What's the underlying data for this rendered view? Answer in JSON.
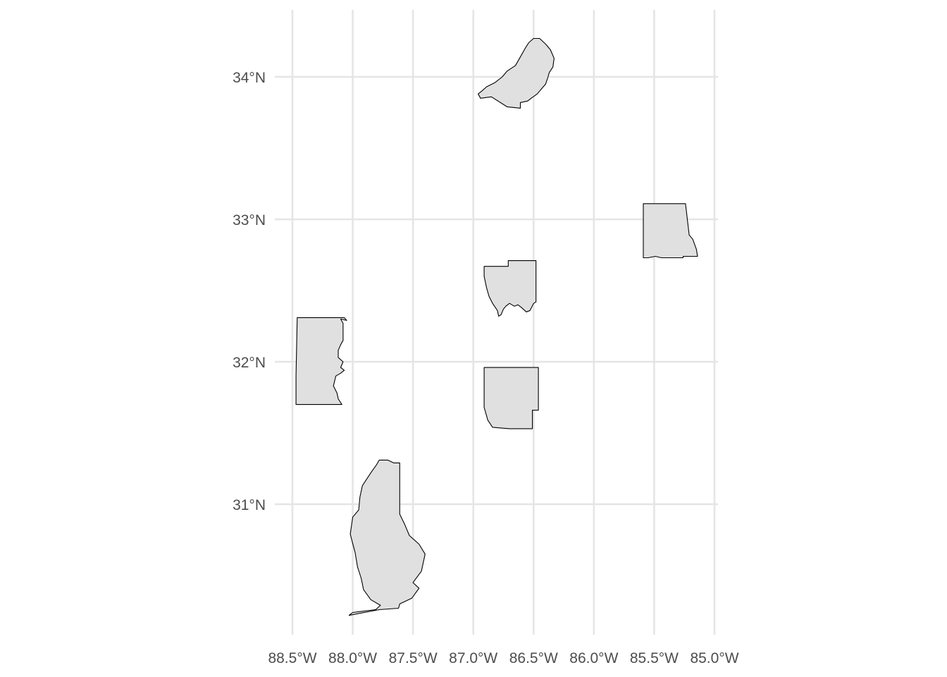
{
  "map": {
    "type": "choropleth-outline",
    "fill_color": "#e0e0e0",
    "stroke_color": "#000000",
    "grid_color": "#e5e5e5",
    "background": "#ffffff",
    "lon_range": [
      -88.5,
      -85.0
    ],
    "lat_range": [
      30.22,
      34.27
    ],
    "x_ticks": [
      {
        "value": -88.5,
        "label": "88.5°W"
      },
      {
        "value": -88.0,
        "label": "88.0°W"
      },
      {
        "value": -87.5,
        "label": "87.5°W"
      },
      {
        "value": -87.0,
        "label": "87.0°W"
      },
      {
        "value": -86.5,
        "label": "86.5°W"
      },
      {
        "value": -86.0,
        "label": "86.0°W"
      },
      {
        "value": -85.5,
        "label": "85.5°W"
      },
      {
        "value": -85.0,
        "label": "85.0°W"
      }
    ],
    "y_ticks": [
      {
        "value": 31,
        "label": "31°N"
      },
      {
        "value": 32,
        "label": "32°N"
      },
      {
        "value": 33,
        "label": "33°N"
      },
      {
        "value": 34,
        "label": "34°N"
      }
    ],
    "regions": [
      {
        "id": "region-north",
        "coords": [
          [
            -86.96,
            33.88
          ],
          [
            -86.94,
            33.85
          ],
          [
            -86.85,
            33.86
          ],
          [
            -86.72,
            33.79
          ],
          [
            -86.61,
            33.78
          ],
          [
            -86.61,
            33.82
          ],
          [
            -86.55,
            33.83
          ],
          [
            -86.52,
            33.85
          ],
          [
            -86.47,
            33.88
          ],
          [
            -86.4,
            33.95
          ],
          [
            -86.38,
            34.0
          ],
          [
            -86.37,
            34.03
          ],
          [
            -86.34,
            34.07
          ],
          [
            -86.33,
            34.13
          ],
          [
            -86.36,
            34.19
          ],
          [
            -86.4,
            34.23
          ],
          [
            -86.45,
            34.27
          ],
          [
            -86.5,
            34.27
          ],
          [
            -86.54,
            34.24
          ],
          [
            -86.57,
            34.2
          ],
          [
            -86.61,
            34.14
          ],
          [
            -86.65,
            34.08
          ],
          [
            -86.72,
            34.04
          ],
          [
            -86.76,
            34.0
          ],
          [
            -86.82,
            33.96
          ],
          [
            -86.89,
            33.93
          ],
          [
            -86.93,
            33.9
          ],
          [
            -86.96,
            33.88
          ]
        ]
      },
      {
        "id": "region-east",
        "coords": [
          [
            -85.59,
            32.73
          ],
          [
            -85.59,
            33.11
          ],
          [
            -85.24,
            33.11
          ],
          [
            -85.21,
            32.89
          ],
          [
            -85.18,
            32.86
          ],
          [
            -85.15,
            32.79
          ],
          [
            -85.14,
            32.74
          ],
          [
            -85.26,
            32.74
          ],
          [
            -85.26,
            32.73
          ],
          [
            -85.44,
            32.73
          ],
          [
            -85.49,
            32.74
          ],
          [
            -85.55,
            32.73
          ],
          [
            -85.59,
            32.73
          ]
        ]
      },
      {
        "id": "region-center",
        "coords": [
          [
            -86.91,
            32.67
          ],
          [
            -86.71,
            32.67
          ],
          [
            -86.71,
            32.71
          ],
          [
            -86.48,
            32.71
          ],
          [
            -86.48,
            32.42
          ],
          [
            -86.5,
            32.41
          ],
          [
            -86.53,
            32.36
          ],
          [
            -86.56,
            32.35
          ],
          [
            -86.6,
            32.38
          ],
          [
            -86.63,
            32.4
          ],
          [
            -86.66,
            32.39
          ],
          [
            -86.68,
            32.4
          ],
          [
            -86.7,
            32.41
          ],
          [
            -86.73,
            32.39
          ],
          [
            -86.75,
            32.37
          ],
          [
            -86.77,
            32.33
          ],
          [
            -86.79,
            32.32
          ],
          [
            -86.8,
            32.36
          ],
          [
            -86.84,
            32.41
          ],
          [
            -86.87,
            32.46
          ],
          [
            -86.89,
            32.52
          ],
          [
            -86.91,
            32.6
          ],
          [
            -86.91,
            32.67
          ]
        ]
      },
      {
        "id": "region-south-center",
        "coords": [
          [
            -86.91,
            31.96
          ],
          [
            -86.46,
            31.96
          ],
          [
            -86.46,
            31.66
          ],
          [
            -86.51,
            31.66
          ],
          [
            -86.51,
            31.53
          ],
          [
            -86.7,
            31.53
          ],
          [
            -86.84,
            31.54
          ],
          [
            -86.88,
            31.59
          ],
          [
            -86.91,
            31.68
          ],
          [
            -86.91,
            31.96
          ]
        ]
      },
      {
        "id": "region-west",
        "coords": [
          [
            -88.46,
            32.31
          ],
          [
            -88.21,
            32.31
          ],
          [
            -88.07,
            32.31
          ],
          [
            -88.05,
            32.29
          ],
          [
            -88.1,
            32.3
          ],
          [
            -88.08,
            32.27
          ],
          [
            -88.08,
            32.15
          ],
          [
            -88.1,
            32.12
          ],
          [
            -88.12,
            32.08
          ],
          [
            -88.12,
            32.03
          ],
          [
            -88.08,
            32.0
          ],
          [
            -88.1,
            31.96
          ],
          [
            -88.07,
            31.94
          ],
          [
            -88.1,
            31.92
          ],
          [
            -88.14,
            31.9
          ],
          [
            -88.16,
            31.83
          ],
          [
            -88.13,
            31.78
          ],
          [
            -88.12,
            31.74
          ],
          [
            -88.09,
            31.7
          ],
          [
            -88.47,
            31.7
          ],
          [
            -88.47,
            31.9
          ],
          [
            -88.46,
            32.31
          ]
        ]
      },
      {
        "id": "region-southwest",
        "coords": [
          [
            -88.03,
            30.22
          ],
          [
            -87.78,
            30.26
          ],
          [
            -87.62,
            30.27
          ],
          [
            -87.61,
            30.3
          ],
          [
            -87.51,
            30.34
          ],
          [
            -87.45,
            30.41
          ],
          [
            -87.5,
            30.45
          ],
          [
            -87.43,
            30.53
          ],
          [
            -87.4,
            30.65
          ],
          [
            -87.45,
            30.72
          ],
          [
            -87.53,
            30.78
          ],
          [
            -87.57,
            30.86
          ],
          [
            -87.61,
            30.93
          ],
          [
            -87.61,
            31.29
          ],
          [
            -87.66,
            31.29
          ],
          [
            -87.71,
            31.31
          ],
          [
            -87.78,
            31.31
          ],
          [
            -87.8,
            31.28
          ],
          [
            -87.85,
            31.22
          ],
          [
            -87.92,
            31.13
          ],
          [
            -87.94,
            31.05
          ],
          [
            -87.95,
            30.96
          ],
          [
            -88.0,
            30.91
          ],
          [
            -88.02,
            30.79
          ],
          [
            -87.98,
            30.66
          ],
          [
            -87.96,
            30.56
          ],
          [
            -87.93,
            30.48
          ],
          [
            -87.91,
            30.4
          ],
          [
            -87.85,
            30.33
          ],
          [
            -87.77,
            30.29
          ],
          [
            -87.81,
            30.26
          ],
          [
            -88.0,
            30.24
          ],
          [
            -88.03,
            30.22
          ]
        ]
      }
    ]
  }
}
